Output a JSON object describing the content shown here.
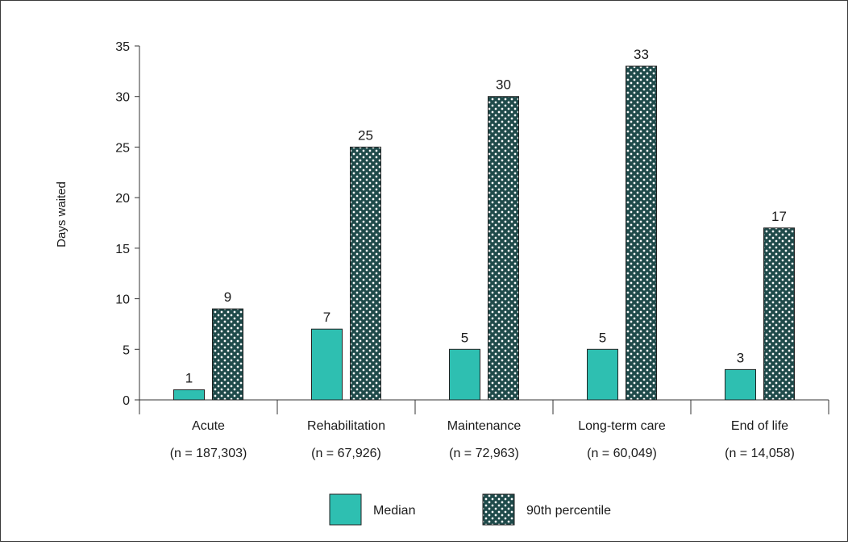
{
  "chart_data": {
    "type": "bar",
    "ylabel": "Days waited",
    "ylim": [
      0,
      35
    ],
    "yticks": [
      0,
      5,
      10,
      15,
      20,
      25,
      30,
      35
    ],
    "categories": [
      {
        "name": "Acute",
        "n": "(n = 187,303)"
      },
      {
        "name": "Rehabilitation",
        "n": "(n = 67,926)"
      },
      {
        "name": "Maintenance",
        "n": "(n = 72,963)"
      },
      {
        "name": "Long-term care",
        "n": "(n = 60,049)"
      },
      {
        "name": "End of life",
        "n": "(n = 14,058)"
      }
    ],
    "series": [
      {
        "name": "Median",
        "values": [
          1,
          7,
          5,
          5,
          3
        ],
        "color": "#2ebfb1",
        "pattern": "solid"
      },
      {
        "name": "90th percentile",
        "values": [
          9,
          25,
          30,
          33,
          17
        ],
        "color": "#1f4a4a",
        "pattern": "white-dots"
      }
    ],
    "legend": "bottom-center",
    "grid": false
  }
}
